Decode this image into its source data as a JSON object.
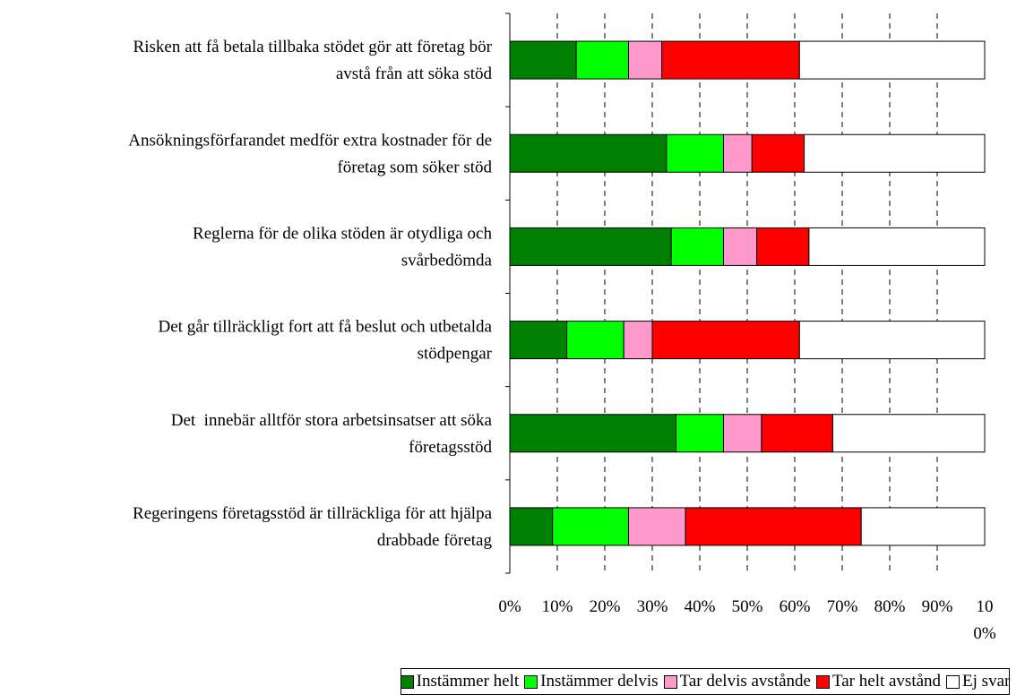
{
  "chart_data": {
    "type": "stacked_barh",
    "categories": [
      [
        "Risken att få betala tillbaka stödet gör att företag bör",
        "avstå från att söka stöd"
      ],
      [
        "Ansökningsförfarandet medför extra kostnader för de",
        "företag som söker stöd"
      ],
      [
        "Reglerna för de olika stöden är otydliga och",
        "svårbedömda"
      ],
      [
        "Det går tillräckligt fort att få beslut och utbetalda",
        "stödpengar"
      ],
      [
        "Det  innebär alltför stora arbetsinsatser att söka",
        "företagsstöd"
      ],
      [
        "Regeringens företagsstöd är tillräckliga för att hjälpa",
        "drabbade företag"
      ]
    ],
    "series": [
      {
        "name": "Instämmer helt",
        "color": "#008000",
        "values": [
          14,
          33,
          34,
          12,
          35,
          9
        ]
      },
      {
        "name": "Instämmer delvis",
        "color": "#00ff00",
        "values": [
          11,
          12,
          11,
          12,
          10,
          16
        ]
      },
      {
        "name": "Tar delvis avstånde",
        "color": "#ff99cc",
        "values": [
          7,
          6,
          7,
          6,
          8,
          12
        ]
      },
      {
        "name": "Tar helt avstånd",
        "color": "#ff0000",
        "values": [
          29,
          11,
          11,
          31,
          15,
          37
        ]
      },
      {
        "name": "Ej svar",
        "color": "#ffffff",
        "values": [
          39,
          38,
          37,
          39,
          32,
          26
        ]
      }
    ],
    "xlim": [
      0,
      100
    ],
    "xticks": [
      {
        "value": 0,
        "label": "0%"
      },
      {
        "value": 10,
        "label": "10%"
      },
      {
        "value": 20,
        "label": "20%"
      },
      {
        "value": 30,
        "label": "30%"
      },
      {
        "value": 40,
        "label": "40%"
      },
      {
        "value": 50,
        "label": "50%"
      },
      {
        "value": 60,
        "label": "60%"
      },
      {
        "value": 70,
        "label": "70%"
      },
      {
        "value": 80,
        "label": "80%"
      },
      {
        "value": 90,
        "label": "90%"
      },
      {
        "value": 100,
        "label": "100%"
      }
    ],
    "grid": true,
    "legend": "bottom-right"
  }
}
